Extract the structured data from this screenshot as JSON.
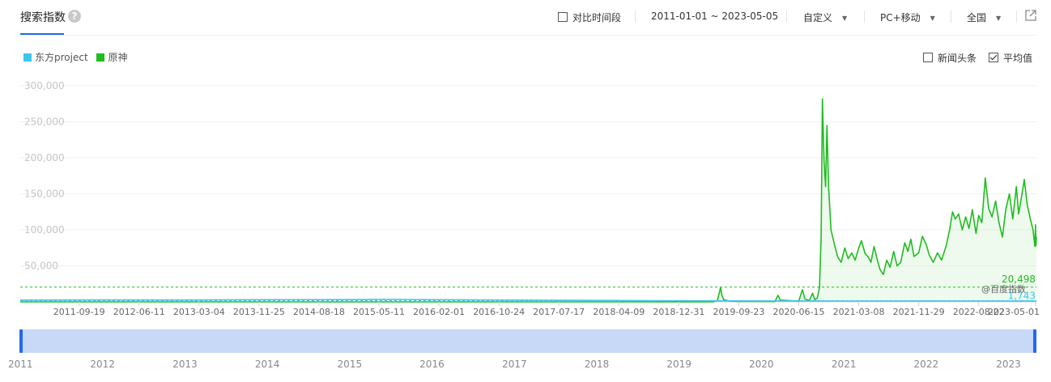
{
  "header": {
    "title": "搜索指数",
    "help_icon": "?",
    "compare_label": "对比时间段",
    "date_range": "2011-01-01 ~ 2023-05-05",
    "custom_label": "自定义",
    "device_label": "PC+移动",
    "region_label": "全国"
  },
  "legend": [
    {
      "name": "东方project",
      "color": "#3ec5f0"
    },
    {
      "name": "原神",
      "color": "#1fbd1f"
    }
  ],
  "options": {
    "news_label": "新闻头条",
    "average_label": "平均值",
    "average_checked": true
  },
  "watermark": "@百度指数",
  "colors": {
    "accent": "#2468f2",
    "genshin": "#1fbd1f",
    "touhou": "#3ec5f0",
    "slider": "#c7d9f7"
  },
  "chart_data": {
    "type": "line",
    "x_start": "2011-01-01",
    "x_end": "2023-05-05",
    "ylim": [
      0,
      300000
    ],
    "y_ticks": [
      {
        "value": 50000,
        "label": "50,000"
      },
      {
        "value": 100000,
        "label": "100,000"
      },
      {
        "value": 150000,
        "label": "150,000"
      },
      {
        "value": 200000,
        "label": "200,000"
      },
      {
        "value": 250000,
        "label": "250,000"
      },
      {
        "value": 300000,
        "label": "300,000"
      }
    ],
    "x_ticks": [
      "2011-09-19",
      "2012-06-11",
      "2013-03-04",
      "2013-11-25",
      "2014-08-18",
      "2015-05-11",
      "2016-02-01",
      "2016-10-24",
      "2017-07-17",
      "2018-04-09",
      "2018-12-31",
      "2019-09-23",
      "2020-06-15",
      "2021-03-08",
      "2021-11-29",
      "2022-08-22",
      "2023-05-01"
    ],
    "years": [
      "2011",
      "2012",
      "2013",
      "2014",
      "2015",
      "2016",
      "2017",
      "2018",
      "2019",
      "2020",
      "2021",
      "2022",
      "2023"
    ],
    "series": [
      {
        "name": "原神",
        "color": "#1fbd1f",
        "average": 20498,
        "average_label": "20,498",
        "points": [
          [
            "2011-01-01",
            0
          ],
          [
            "2019-06-01",
            0
          ],
          [
            "2019-06-20",
            2000
          ],
          [
            "2019-06-28",
            12000
          ],
          [
            "2019-07-04",
            20000
          ],
          [
            "2019-07-10",
            9000
          ],
          [
            "2019-07-18",
            3000
          ],
          [
            "2019-08-10",
            1200
          ],
          [
            "2019-09-20",
            700
          ],
          [
            "2020-03-01",
            500
          ],
          [
            "2020-03-15",
            9000
          ],
          [
            "2020-03-25",
            2500
          ],
          [
            "2020-05-20",
            1500
          ],
          [
            "2020-06-15",
            1000
          ],
          [
            "2020-07-01",
            17000
          ],
          [
            "2020-07-12",
            4000
          ],
          [
            "2020-08-01",
            2000
          ],
          [
            "2020-08-15",
            12000
          ],
          [
            "2020-08-25",
            3000
          ],
          [
            "2020-09-05",
            5000
          ],
          [
            "2020-09-15",
            20000
          ],
          [
            "2020-09-22",
            90000
          ],
          [
            "2020-09-28",
            282000
          ],
          [
            "2020-10-05",
            195000
          ],
          [
            "2020-10-12",
            160000
          ],
          [
            "2020-10-18",
            245000
          ],
          [
            "2020-10-25",
            160000
          ],
          [
            "2020-11-05",
            100000
          ],
          [
            "2020-11-20",
            80000
          ],
          [
            "2020-12-05",
            62000
          ],
          [
            "2020-12-20",
            55000
          ],
          [
            "2021-01-05",
            75000
          ],
          [
            "2021-01-20",
            60000
          ],
          [
            "2021-02-05",
            68000
          ],
          [
            "2021-02-20",
            58000
          ],
          [
            "2021-03-08",
            75000
          ],
          [
            "2021-03-20",
            85000
          ],
          [
            "2021-04-05",
            67000
          ],
          [
            "2021-04-20",
            62000
          ],
          [
            "2021-05-01",
            55000
          ],
          [
            "2021-05-15",
            77000
          ],
          [
            "2021-05-28",
            60000
          ],
          [
            "2021-06-10",
            45000
          ],
          [
            "2021-06-25",
            38000
          ],
          [
            "2021-07-10",
            58000
          ],
          [
            "2021-07-25",
            48000
          ],
          [
            "2021-08-10",
            70000
          ],
          [
            "2021-08-25",
            50000
          ],
          [
            "2021-09-10",
            55000
          ],
          [
            "2021-09-28",
            82000
          ],
          [
            "2021-10-12",
            70000
          ],
          [
            "2021-10-25",
            87000
          ],
          [
            "2021-11-08",
            63000
          ],
          [
            "2021-11-29",
            68000
          ],
          [
            "2021-12-15",
            91000
          ],
          [
            "2022-01-01",
            80000
          ],
          [
            "2022-01-15",
            65000
          ],
          [
            "2022-02-01",
            55000
          ],
          [
            "2022-02-20",
            68000
          ],
          [
            "2022-03-10",
            58000
          ],
          [
            "2022-03-30",
            77000
          ],
          [
            "2022-04-15",
            100000
          ],
          [
            "2022-04-28",
            125000
          ],
          [
            "2022-05-10",
            115000
          ],
          [
            "2022-05-25",
            122000
          ],
          [
            "2022-06-10",
            100000
          ],
          [
            "2022-06-25",
            118000
          ],
          [
            "2022-07-10",
            102000
          ],
          [
            "2022-07-25",
            128000
          ],
          [
            "2022-08-10",
            95000
          ],
          [
            "2022-08-22",
            120000
          ],
          [
            "2022-09-05",
            110000
          ],
          [
            "2022-09-20",
            172000
          ],
          [
            "2022-10-05",
            130000
          ],
          [
            "2022-10-20",
            118000
          ],
          [
            "2022-11-05",
            140000
          ],
          [
            "2022-11-20",
            110000
          ],
          [
            "2022-12-05",
            90000
          ],
          [
            "2022-12-20",
            128000
          ],
          [
            "2023-01-05",
            150000
          ],
          [
            "2023-01-20",
            115000
          ],
          [
            "2023-02-05",
            160000
          ],
          [
            "2023-02-15",
            122000
          ],
          [
            "2023-03-01",
            148000
          ],
          [
            "2023-03-12",
            170000
          ],
          [
            "2023-03-25",
            135000
          ],
          [
            "2023-04-08",
            115000
          ],
          [
            "2023-04-20",
            100000
          ],
          [
            "2023-04-28",
            77000
          ],
          [
            "2023-05-01",
            107000
          ],
          [
            "2023-05-03",
            78000
          ],
          [
            "2023-05-05",
            90000
          ]
        ]
      },
      {
        "name": "东方project",
        "color": "#3ec5f0",
        "average": 1743,
        "average_label": "1,743",
        "points": [
          [
            "2011-01-01",
            2500
          ],
          [
            "2012-01-01",
            2700
          ],
          [
            "2013-01-01",
            2600
          ],
          [
            "2014-01-01",
            3000
          ],
          [
            "2015-01-01",
            3200
          ],
          [
            "2015-06-01",
            3500
          ],
          [
            "2016-01-01",
            3000
          ],
          [
            "2017-01-01",
            2500
          ],
          [
            "2018-01-01",
            2000
          ],
          [
            "2019-01-01",
            1500
          ],
          [
            "2020-01-01",
            1200
          ],
          [
            "2021-01-01",
            1100
          ],
          [
            "2022-01-01",
            1200
          ],
          [
            "2023-01-01",
            1100
          ],
          [
            "2023-05-05",
            1000
          ]
        ]
      }
    ]
  }
}
